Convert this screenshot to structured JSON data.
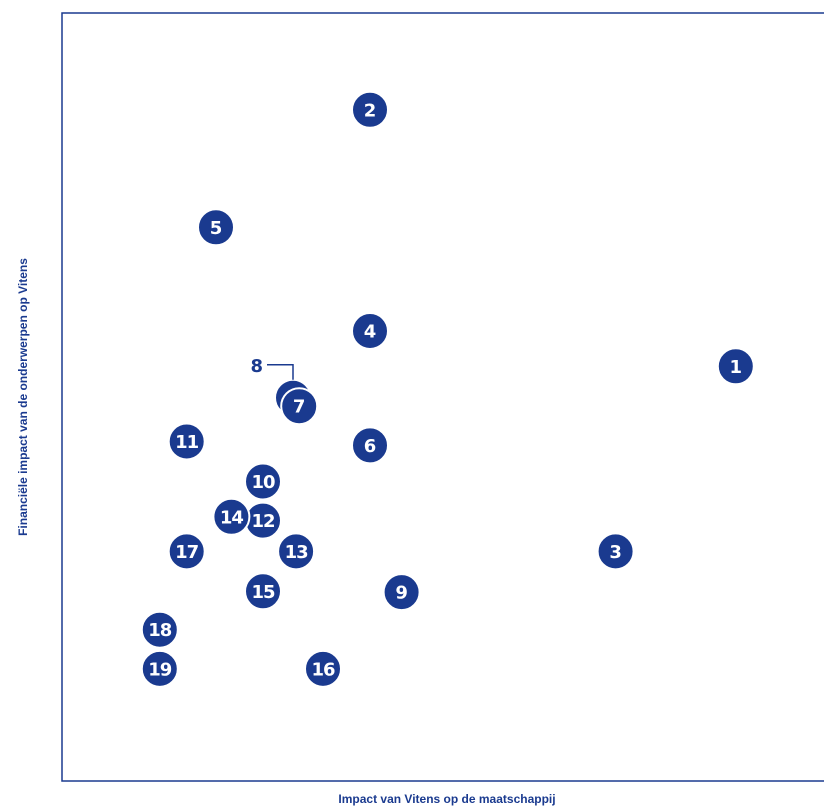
{
  "chart_data": {
    "type": "scatter",
    "title": "",
    "xlabel": "Impact van Vitens op de maatschappij",
    "ylabel": "Financiële impact van de onderwerpen op Vitens",
    "xlim": [
      0,
      100
    ],
    "ylim": [
      0,
      100
    ],
    "grid": false,
    "legend": "none",
    "colors": {
      "marker": "#1a3a8f",
      "frame": "#1a3a8f",
      "text": "#ffffff"
    },
    "points": [
      {
        "label": "1",
        "x": 87.5,
        "y": 54.0
      },
      {
        "label": "2",
        "x": 40.0,
        "y": 87.4
      },
      {
        "label": "3",
        "x": 71.9,
        "y": 29.9
      },
      {
        "label": "4",
        "x": 40.0,
        "y": 58.6
      },
      {
        "label": "5",
        "x": 20.0,
        "y": 72.1
      },
      {
        "label": "6",
        "x": 40.0,
        "y": 43.7
      },
      {
        "label": "7",
        "x": 30.8,
        "y": 48.8
      },
      {
        "label": "8",
        "x": 30.0,
        "y": 49.9,
        "callout": true
      },
      {
        "label": "9",
        "x": 44.1,
        "y": 24.6
      },
      {
        "label": "10",
        "x": 26.1,
        "y": 39.0
      },
      {
        "label": "11",
        "x": 16.2,
        "y": 44.2
      },
      {
        "label": "12",
        "x": 26.1,
        "y": 33.9
      },
      {
        "label": "13",
        "x": 30.4,
        "y": 29.9
      },
      {
        "label": "14",
        "x": 22.0,
        "y": 34.4
      },
      {
        "label": "15",
        "x": 26.1,
        "y": 24.7
      },
      {
        "label": "16",
        "x": 33.9,
        "y": 14.6
      },
      {
        "label": "17",
        "x": 16.2,
        "y": 29.9
      },
      {
        "label": "18",
        "x": 12.7,
        "y": 19.7
      },
      {
        "label": "19",
        "x": 12.7,
        "y": 14.6
      }
    ]
  }
}
